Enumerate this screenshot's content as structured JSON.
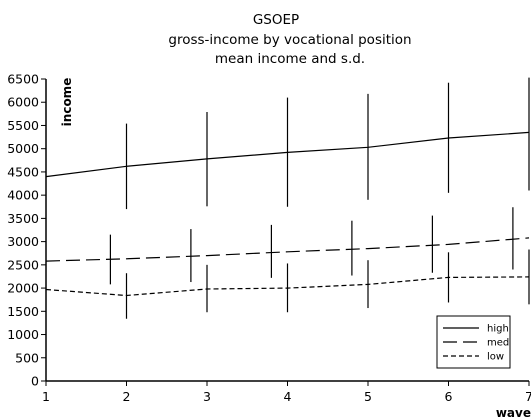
{
  "chart_data": {
    "type": "line",
    "title_lines": [
      "GSOEP",
      "gross-income by vocational position",
      "mean income and s.d."
    ],
    "xlabel": "wave",
    "ylabel": "income",
    "x": [
      1,
      2,
      3,
      4,
      5,
      6,
      7
    ],
    "xlim": [
      1,
      7
    ],
    "ylim": [
      0,
      6500
    ],
    "yticks": [
      0,
      500,
      1000,
      1500,
      2000,
      2500,
      3000,
      3500,
      4000,
      4500,
      5000,
      5500,
      6000,
      6500
    ],
    "grid": false,
    "legend_position": "bottom-right",
    "series": [
      {
        "name": "high",
        "style": "solid",
        "mean": [
          4400,
          4620,
          4780,
          4920,
          5030,
          5230,
          5350
        ],
        "err_x": [
          2,
          3,
          4,
          5,
          6,
          7
        ],
        "err_low": [
          3700,
          3760,
          3750,
          3900,
          4050,
          4100
        ],
        "err_high": [
          5540,
          5790,
          6100,
          6180,
          6420,
          6530
        ]
      },
      {
        "name": "med",
        "style": "long-dash",
        "mean": [
          2580,
          2630,
          2700,
          2780,
          2850,
          2940,
          3080
        ],
        "err_x": [
          1.8,
          2.8,
          3.8,
          4.8,
          5.8,
          6.8
        ],
        "err_low": [
          2080,
          2130,
          2220,
          2270,
          2330,
          2400
        ],
        "err_high": [
          3150,
          3270,
          3360,
          3450,
          3560,
          3740
        ]
      },
      {
        "name": "low",
        "style": "short-dash",
        "mean": [
          1970,
          1840,
          1980,
          2000,
          2080,
          2230,
          2240
        ],
        "err_x": [
          2,
          3,
          4,
          5,
          6,
          7
        ],
        "err_low": [
          1340,
          1480,
          1480,
          1570,
          1690,
          1650
        ],
        "err_high": [
          2320,
          2500,
          2530,
          2600,
          2770,
          2830
        ]
      }
    ]
  }
}
